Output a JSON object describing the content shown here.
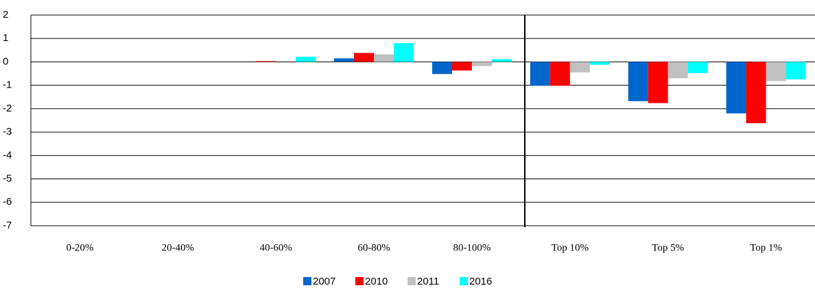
{
  "chart_data": {
    "type": "bar",
    "categories": [
      "0-20%",
      "20-40%",
      "40-60%",
      "60-80%",
      "80-100%",
      "Top 10%",
      "Top 5%",
      "Top 1%"
    ],
    "series": [
      {
        "name": "2007",
        "color": "#0066cc",
        "values": [
          0,
          0,
          0,
          0.15,
          -0.52,
          -1.02,
          -1.68,
          -2.2
        ]
      },
      {
        "name": "2010",
        "color": "#ff0000",
        "values": [
          0,
          0,
          0.03,
          0.38,
          -0.37,
          -1.02,
          -1.76,
          -2.62
        ]
      },
      {
        "name": "2011",
        "color": "#c0c0c0",
        "values": [
          0,
          0,
          0,
          0.32,
          -0.18,
          -0.45,
          -0.7,
          -0.82
        ]
      },
      {
        "name": "2016",
        "color": "#00ffff",
        "values": [
          0,
          0,
          0.22,
          0.8,
          0.12,
          -0.12,
          -0.48,
          -0.75
        ]
      }
    ],
    "ylim": [
      -7,
      2
    ],
    "yticks": [
      2,
      1,
      0,
      -1,
      -2,
      -3,
      -4,
      -5,
      -6,
      -7
    ],
    "grid": true,
    "legend": "bottom"
  }
}
